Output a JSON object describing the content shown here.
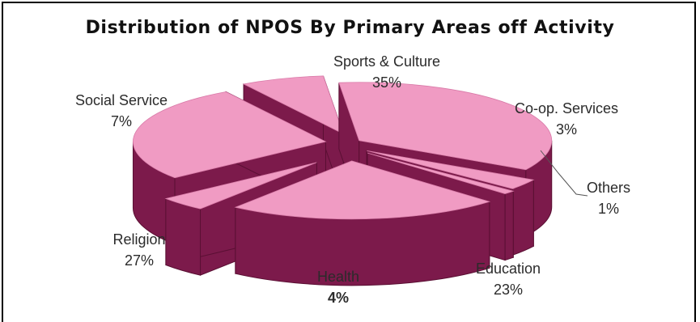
{
  "chart_data": {
    "type": "pie",
    "title": "Distribution of NPOS By Primary Areas off Activity",
    "slices": [
      {
        "label": "Sports & Culture",
        "value": 35,
        "value_label": "35%"
      },
      {
        "label": "Co-op. Services",
        "value": 3,
        "value_label": "3%"
      },
      {
        "label": "Others",
        "value": 1,
        "value_label": "1%"
      },
      {
        "label": "Education",
        "value": 23,
        "value_label": "23%"
      },
      {
        "label": "Health",
        "value": 4,
        "value_label": "4%"
      },
      {
        "label": "Religion",
        "value": 27,
        "value_label": "27%"
      },
      {
        "label": "Social Service",
        "value": 7,
        "value_label": "7%"
      }
    ],
    "style": "3d-exploded",
    "colors": {
      "top": "#f09bc3",
      "side": "#7c1a4b",
      "leader_line": "#555555"
    },
    "legend": "none"
  }
}
